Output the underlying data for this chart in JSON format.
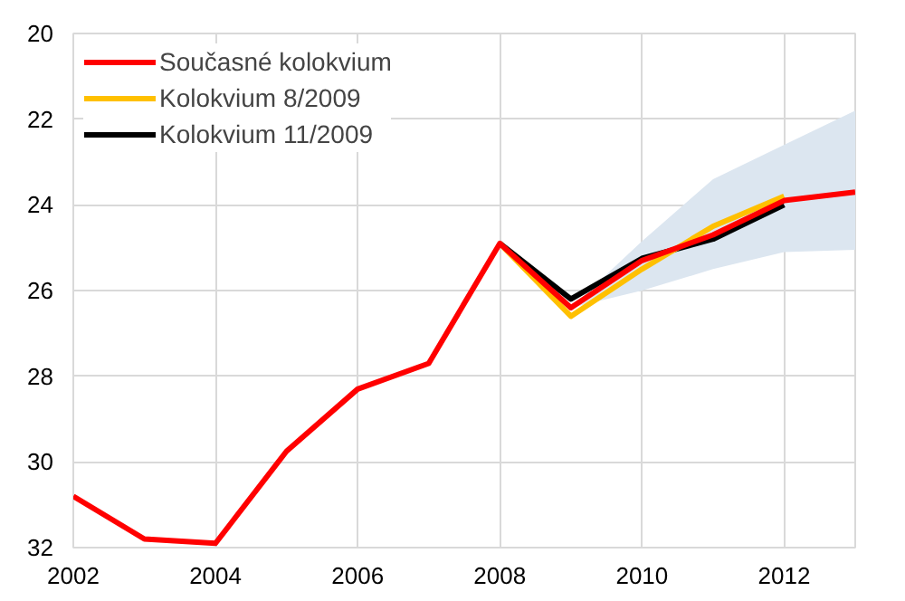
{
  "chart_data": {
    "type": "line",
    "x": [
      2002,
      2003,
      2004,
      2005,
      2006,
      2007,
      2008,
      2009,
      2010,
      2011,
      2012,
      2013
    ],
    "series": [
      {
        "name": "Současné kolokvium",
        "color": "#ff0000",
        "values": [
          30.8,
          31.8,
          31.9,
          29.75,
          28.3,
          27.7,
          24.9,
          26.4,
          25.3,
          24.7,
          23.9,
          23.7
        ],
        "lower": [
          null,
          null,
          null,
          null,
          null,
          null,
          null,
          26.4,
          26.0,
          25.5,
          25.1,
          25.05
        ],
        "upper": [
          null,
          null,
          null,
          null,
          null,
          null,
          null,
          26.4,
          24.85,
          23.4,
          22.6,
          21.8
        ]
      },
      {
        "name": "Kolokvium 8/2009",
        "color": "#ffc000",
        "x": [
          2008,
          2009,
          2010,
          2011,
          2012
        ],
        "values": [
          24.9,
          26.6,
          25.5,
          24.5,
          23.8
        ]
      },
      {
        "name": "Kolokvium 11/2009",
        "color": "#000000",
        "x": [
          2008,
          2009,
          2010,
          2011,
          2012
        ],
        "values": [
          24.9,
          26.2,
          25.25,
          24.8,
          24.0
        ]
      }
    ],
    "xlim": [
      2002,
      2013
    ],
    "xticks": [
      2002,
      2004,
      2006,
      2008,
      2010,
      2012
    ],
    "ylim": [
      32,
      20
    ],
    "yticks": [
      20,
      22,
      24,
      26,
      28,
      30,
      32
    ],
    "grid": true,
    "legend": "top left",
    "line_style": "solid",
    "marker": "none"
  }
}
